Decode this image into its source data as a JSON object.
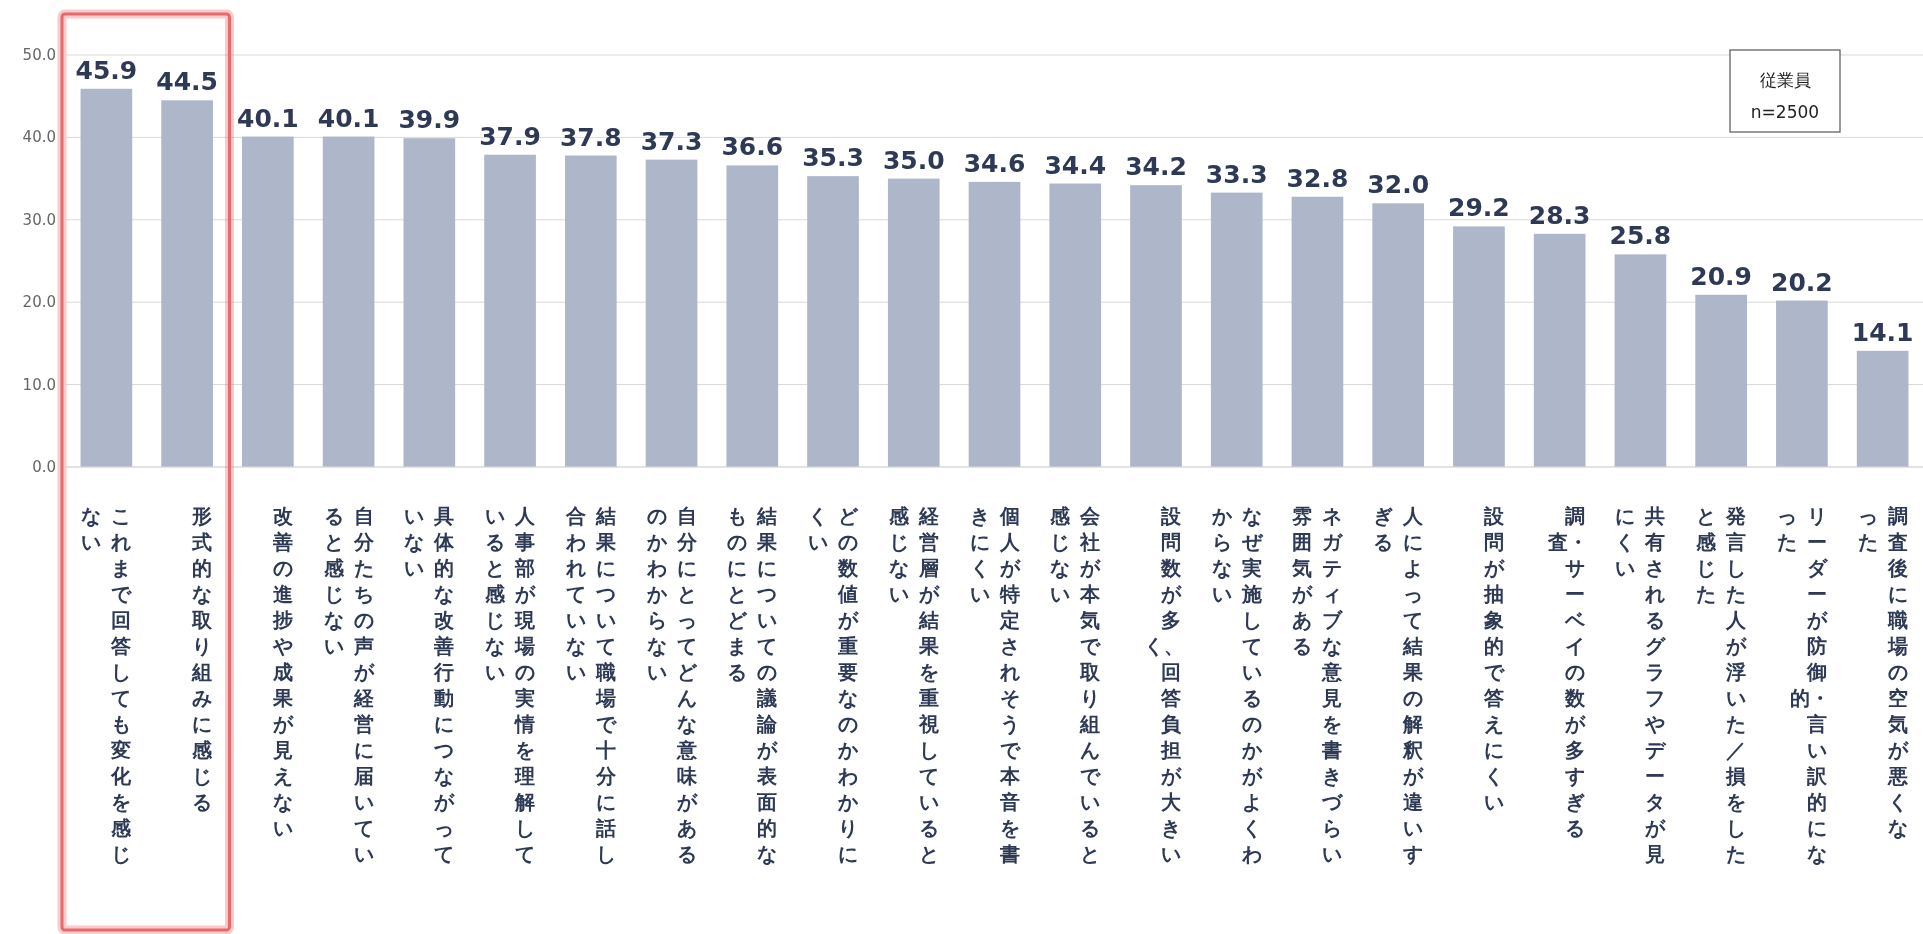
{
  "chart_data": {
    "type": "bar",
    "categories": [
      "これまで回答しても変化を感じない",
      "形式的な取り組みに感じる",
      "改善の進捗や成果が見えない",
      "自分たちの声が経営に届いていると感じない",
      "具体的な改善行動につながっていない",
      "人事部が現場の実情を理解していると感じない",
      "結果について職場で十分に話し合われていない",
      "自分にとってどんな意味があるのかわからない",
      "結果についての議論が表面的なものにとどまる",
      "どの数値が重要なのかわかりにくい",
      "経営層が結果を重視していると感じない",
      "個人が特定されそうで本音を書きにくい",
      "会社が本気で取り組んでいると感じない",
      "設問数が多く、回答負担が大きい",
      "なぜ実施しているのかがよくわからない",
      "ネガティブな意見を書きづらい雰囲気がある",
      "人によって結果の解釈が違いすぎる",
      "設問が抽象的で答えにくい",
      "調査・サーベイの数が多すぎる",
      "共有されるグラフやデータが見にくい",
      "発言した人が浮いた／損をしたと感じた",
      "リーダーが防御的・言い訳的になった",
      "調査後に職場の空気が悪くなった"
    ],
    "values": [
      45.9,
      44.5,
      40.1,
      40.1,
      39.9,
      37.9,
      37.8,
      37.3,
      36.6,
      35.3,
      35.0,
      34.6,
      34.4,
      34.2,
      33.3,
      32.8,
      32.0,
      29.2,
      28.3,
      25.8,
      20.9,
      20.2,
      14.1
    ],
    "value_labels": [
      "45.9",
      "44.5",
      "40.1",
      "40.1",
      "39.9",
      "37.9",
      "37.8",
      "37.3",
      "36.6",
      "35.3",
      "35.0",
      "34.6",
      "34.4",
      "34.2",
      "33.3",
      "32.8",
      "32.0",
      "29.2",
      "28.3",
      "25.8",
      "20.9",
      "20.2",
      "14.1"
    ],
    "color": "#adb7c9",
    "ylim": [
      0,
      50
    ],
    "yticks": [
      {
        "value": 0,
        "label": "0.0"
      },
      {
        "value": 10,
        "label": "10.0"
      },
      {
        "value": 20,
        "label": "20.0"
      },
      {
        "value": 30,
        "label": "30.0"
      },
      {
        "value": 40,
        "label": "40.0"
      },
      {
        "value": 50,
        "label": "50.0"
      }
    ],
    "grid": "y",
    "annotations": [
      "従業員",
      "n=2500"
    ]
  }
}
